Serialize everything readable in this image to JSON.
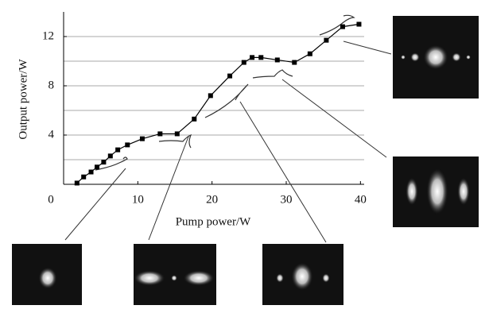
{
  "chart_data": {
    "type": "line",
    "x_label": "Pump power/W",
    "y_label": "Output power/W",
    "x": [
      1.8,
      2.7,
      3.7,
      4.5,
      5.4,
      6.3,
      7.3,
      8.6,
      10.6,
      13.0,
      15.3,
      17.6,
      19.8,
      22.4,
      24.3,
      25.4,
      26.6,
      28.8,
      31.1,
      33.2,
      35.4,
      37.6,
      39.8
    ],
    "series": [
      {
        "color": "#000000",
        "values": [
          0.1,
          0.6,
          1.0,
          1.4,
          1.8,
          2.3,
          2.8,
          3.2,
          3.7,
          4.1,
          4.1,
          5.3,
          7.2,
          8.8,
          9.9,
          10.3,
          10.3,
          10.1,
          9.9,
          10.6,
          11.7,
          12.8,
          13.0
        ]
      }
    ],
    "xlim": [
      0,
      40.5
    ],
    "ylim": [
      0,
      14
    ],
    "xticks": [
      0,
      10,
      20,
      30,
      40
    ],
    "yticks": [
      4,
      8,
      12
    ],
    "grid": true,
    "grid_every": 2
  }
}
